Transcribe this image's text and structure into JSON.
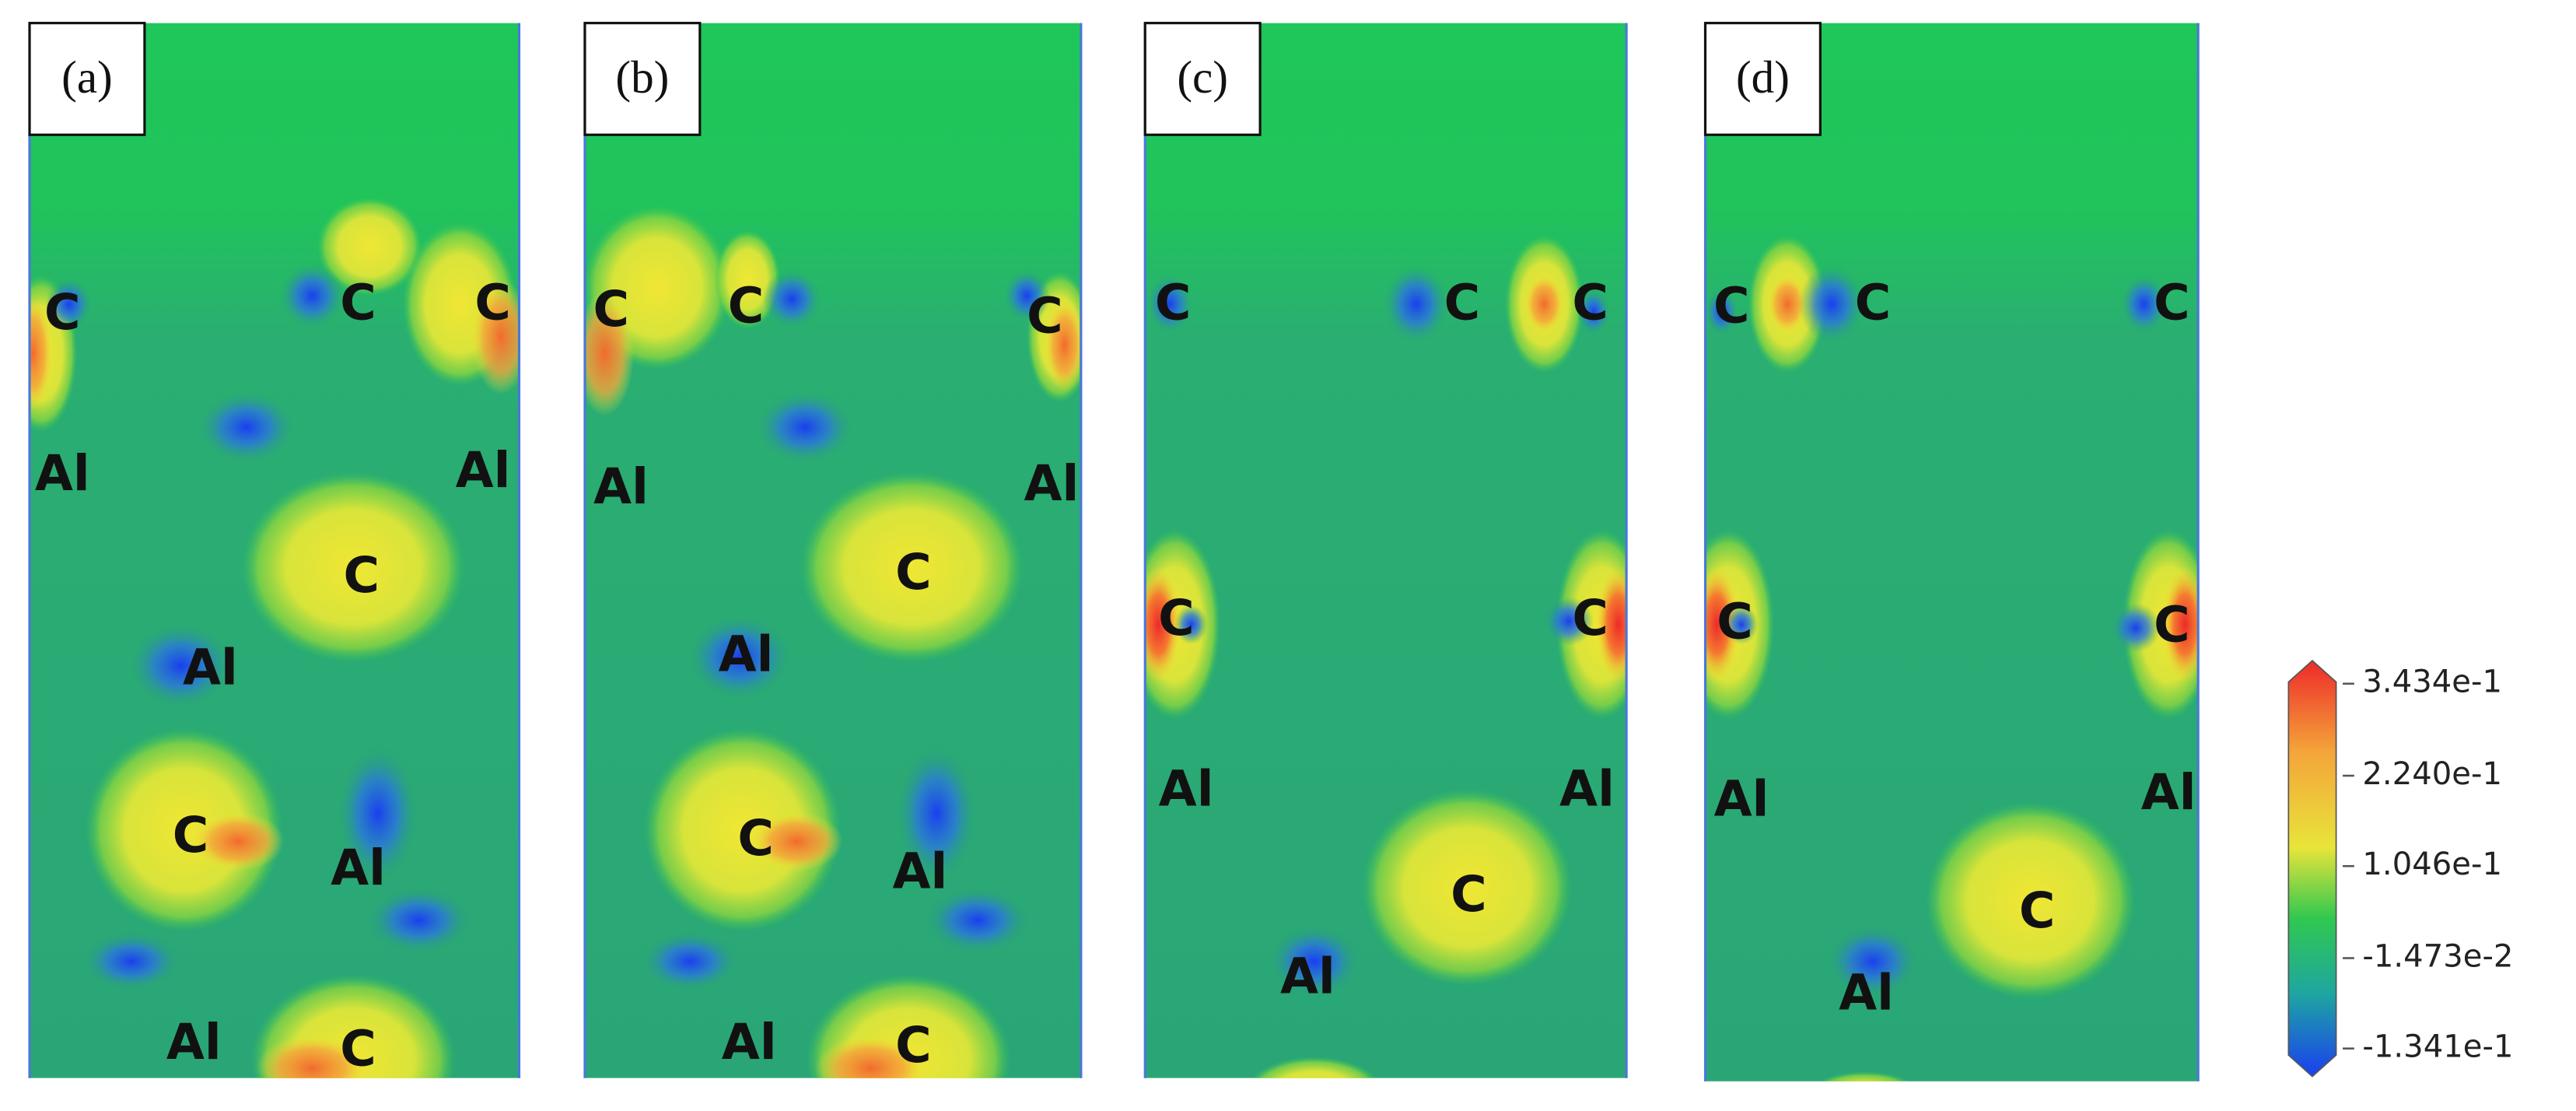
{
  "panels": [
    {
      "label": "(a)",
      "atoms": [
        "C",
        "C",
        "C",
        "Al",
        "Al",
        "C",
        "Al",
        "C",
        "Al",
        "Al",
        "C"
      ]
    },
    {
      "label": "(b)",
      "atoms": [
        "C",
        "C",
        "C",
        "Al",
        "Al",
        "C",
        "Al",
        "C",
        "Al",
        "Al",
        "C"
      ]
    },
    {
      "label": "(c)",
      "atoms": [
        "C",
        "C",
        "C",
        "C",
        "C",
        "Al",
        "Al",
        "C",
        "Al"
      ]
    },
    {
      "label": "(d)",
      "atoms": [
        "C",
        "C",
        "C",
        "C",
        "C",
        "Al",
        "Al",
        "C",
        "Al"
      ]
    }
  ],
  "colorbar": {
    "ticks": [
      "3.434e-1",
      "2.240e-1",
      "1.046e-1",
      "-1.473e-2",
      "-1.341e-1"
    ]
  }
}
